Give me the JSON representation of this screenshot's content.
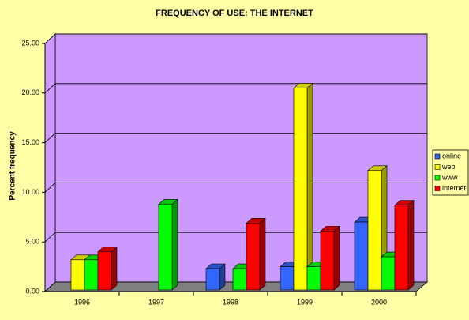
{
  "chart_data": {
    "type": "bar3d",
    "title": "FREQUENCY OF USE: THE INTERNET",
    "y_label": "Percent frequency",
    "categories": [
      "1996",
      "1997",
      "1998",
      "1999",
      "2000"
    ],
    "series": [
      {
        "name": "online",
        "color": "#3366ff",
        "values": [
          null,
          null,
          2.3,
          2.5,
          7.0
        ]
      },
      {
        "name": "web",
        "color": "#ffff00",
        "values": [
          3.2,
          null,
          null,
          20.5,
          12.2
        ]
      },
      {
        "name": "www",
        "color": "#00ff00",
        "values": [
          3.2,
          8.8,
          2.3,
          2.5,
          3.5
        ]
      },
      {
        "name": "internet",
        "color": "#ff0000",
        "values": [
          4.0,
          null,
          6.9,
          6.1,
          8.7
        ]
      }
    ],
    "ylim": [
      0,
      25
    ],
    "yticks": [
      {
        "value": 0,
        "label": "0.00"
      },
      {
        "value": 5,
        "label": "5.00"
      },
      {
        "value": 10,
        "label": "10.00"
      },
      {
        "value": 15,
        "label": "15.00"
      },
      {
        "value": 20,
        "label": "20.00"
      },
      {
        "value": 25,
        "label": "25.00"
      }
    ],
    "grid": true,
    "legend": "right"
  }
}
